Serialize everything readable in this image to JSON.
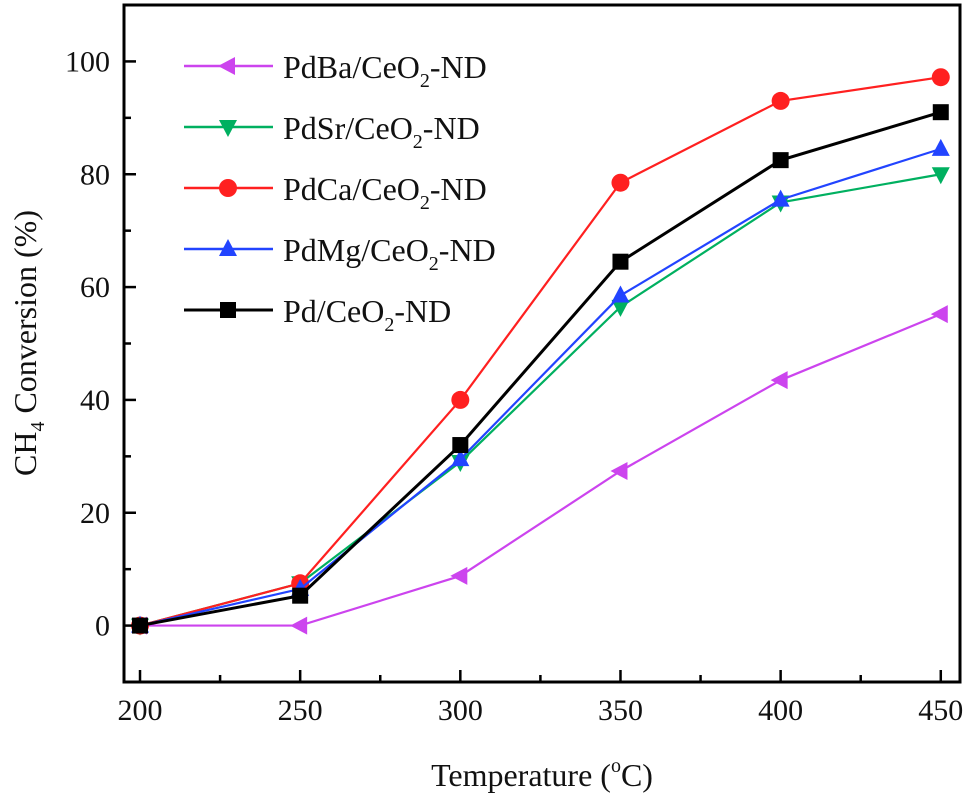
{
  "chart_data": {
    "type": "line",
    "xlabel": "Temperature (oC)",
    "xlabel_parts": {
      "pre": "Temperature (",
      "sup": "o",
      "post": "C)"
    },
    "ylabel": "CH4 Conversion (%)",
    "ylabel_parts": {
      "pre": "CH",
      "sub": "4",
      "post": " Conversion (%)"
    },
    "xlim": [
      195,
      456
    ],
    "ylim": [
      -10,
      110
    ],
    "xticks": [
      200,
      250,
      300,
      350,
      400,
      450
    ],
    "yticks": [
      0,
      20,
      40,
      60,
      80,
      100
    ],
    "grid": false,
    "legend_position": "top-left",
    "x": [
      200,
      250,
      300,
      350,
      400,
      450
    ],
    "series": [
      {
        "name": "PdBa/CeO2-ND",
        "label_parts": {
          "pre": "PdBa/CeO",
          "sub": "2",
          "post": "-ND"
        },
        "color": "#cc44ee",
        "marker": "triangle-left",
        "values": [
          0,
          0,
          8.8,
          27.4,
          43.5,
          55.2
        ]
      },
      {
        "name": "PdSr/CeO2-ND",
        "label_parts": {
          "pre": "PdSr/CeO",
          "sub": "2",
          "post": "-ND"
        },
        "color": "#00b060",
        "marker": "triangle-down",
        "values": [
          0,
          7.5,
          29,
          56.5,
          75,
          80
        ]
      },
      {
        "name": "PdCa/CeO2-ND",
        "label_parts": {
          "pre": "PdCa/CeO",
          "sub": "2",
          "post": "-ND"
        },
        "color": "#ff2020",
        "marker": "circle",
        "values": [
          0,
          7.5,
          40,
          78.5,
          93,
          97.2
        ]
      },
      {
        "name": "PdMg/CeO2-ND",
        "label_parts": {
          "pre": "PdMg/CeO",
          "sub": "2",
          "post": "-ND"
        },
        "color": "#2244ff",
        "marker": "triangle-up",
        "values": [
          0,
          6.5,
          29.5,
          58.5,
          75.5,
          84.5
        ]
      },
      {
        "name": "Pd/CeO2-ND",
        "label_parts": {
          "pre": "Pd/CeO",
          "sub": "2",
          "post": "-ND"
        },
        "color": "#000000",
        "marker": "square",
        "values": [
          0,
          5.3,
          32,
          64.5,
          82.5,
          91
        ]
      }
    ]
  }
}
